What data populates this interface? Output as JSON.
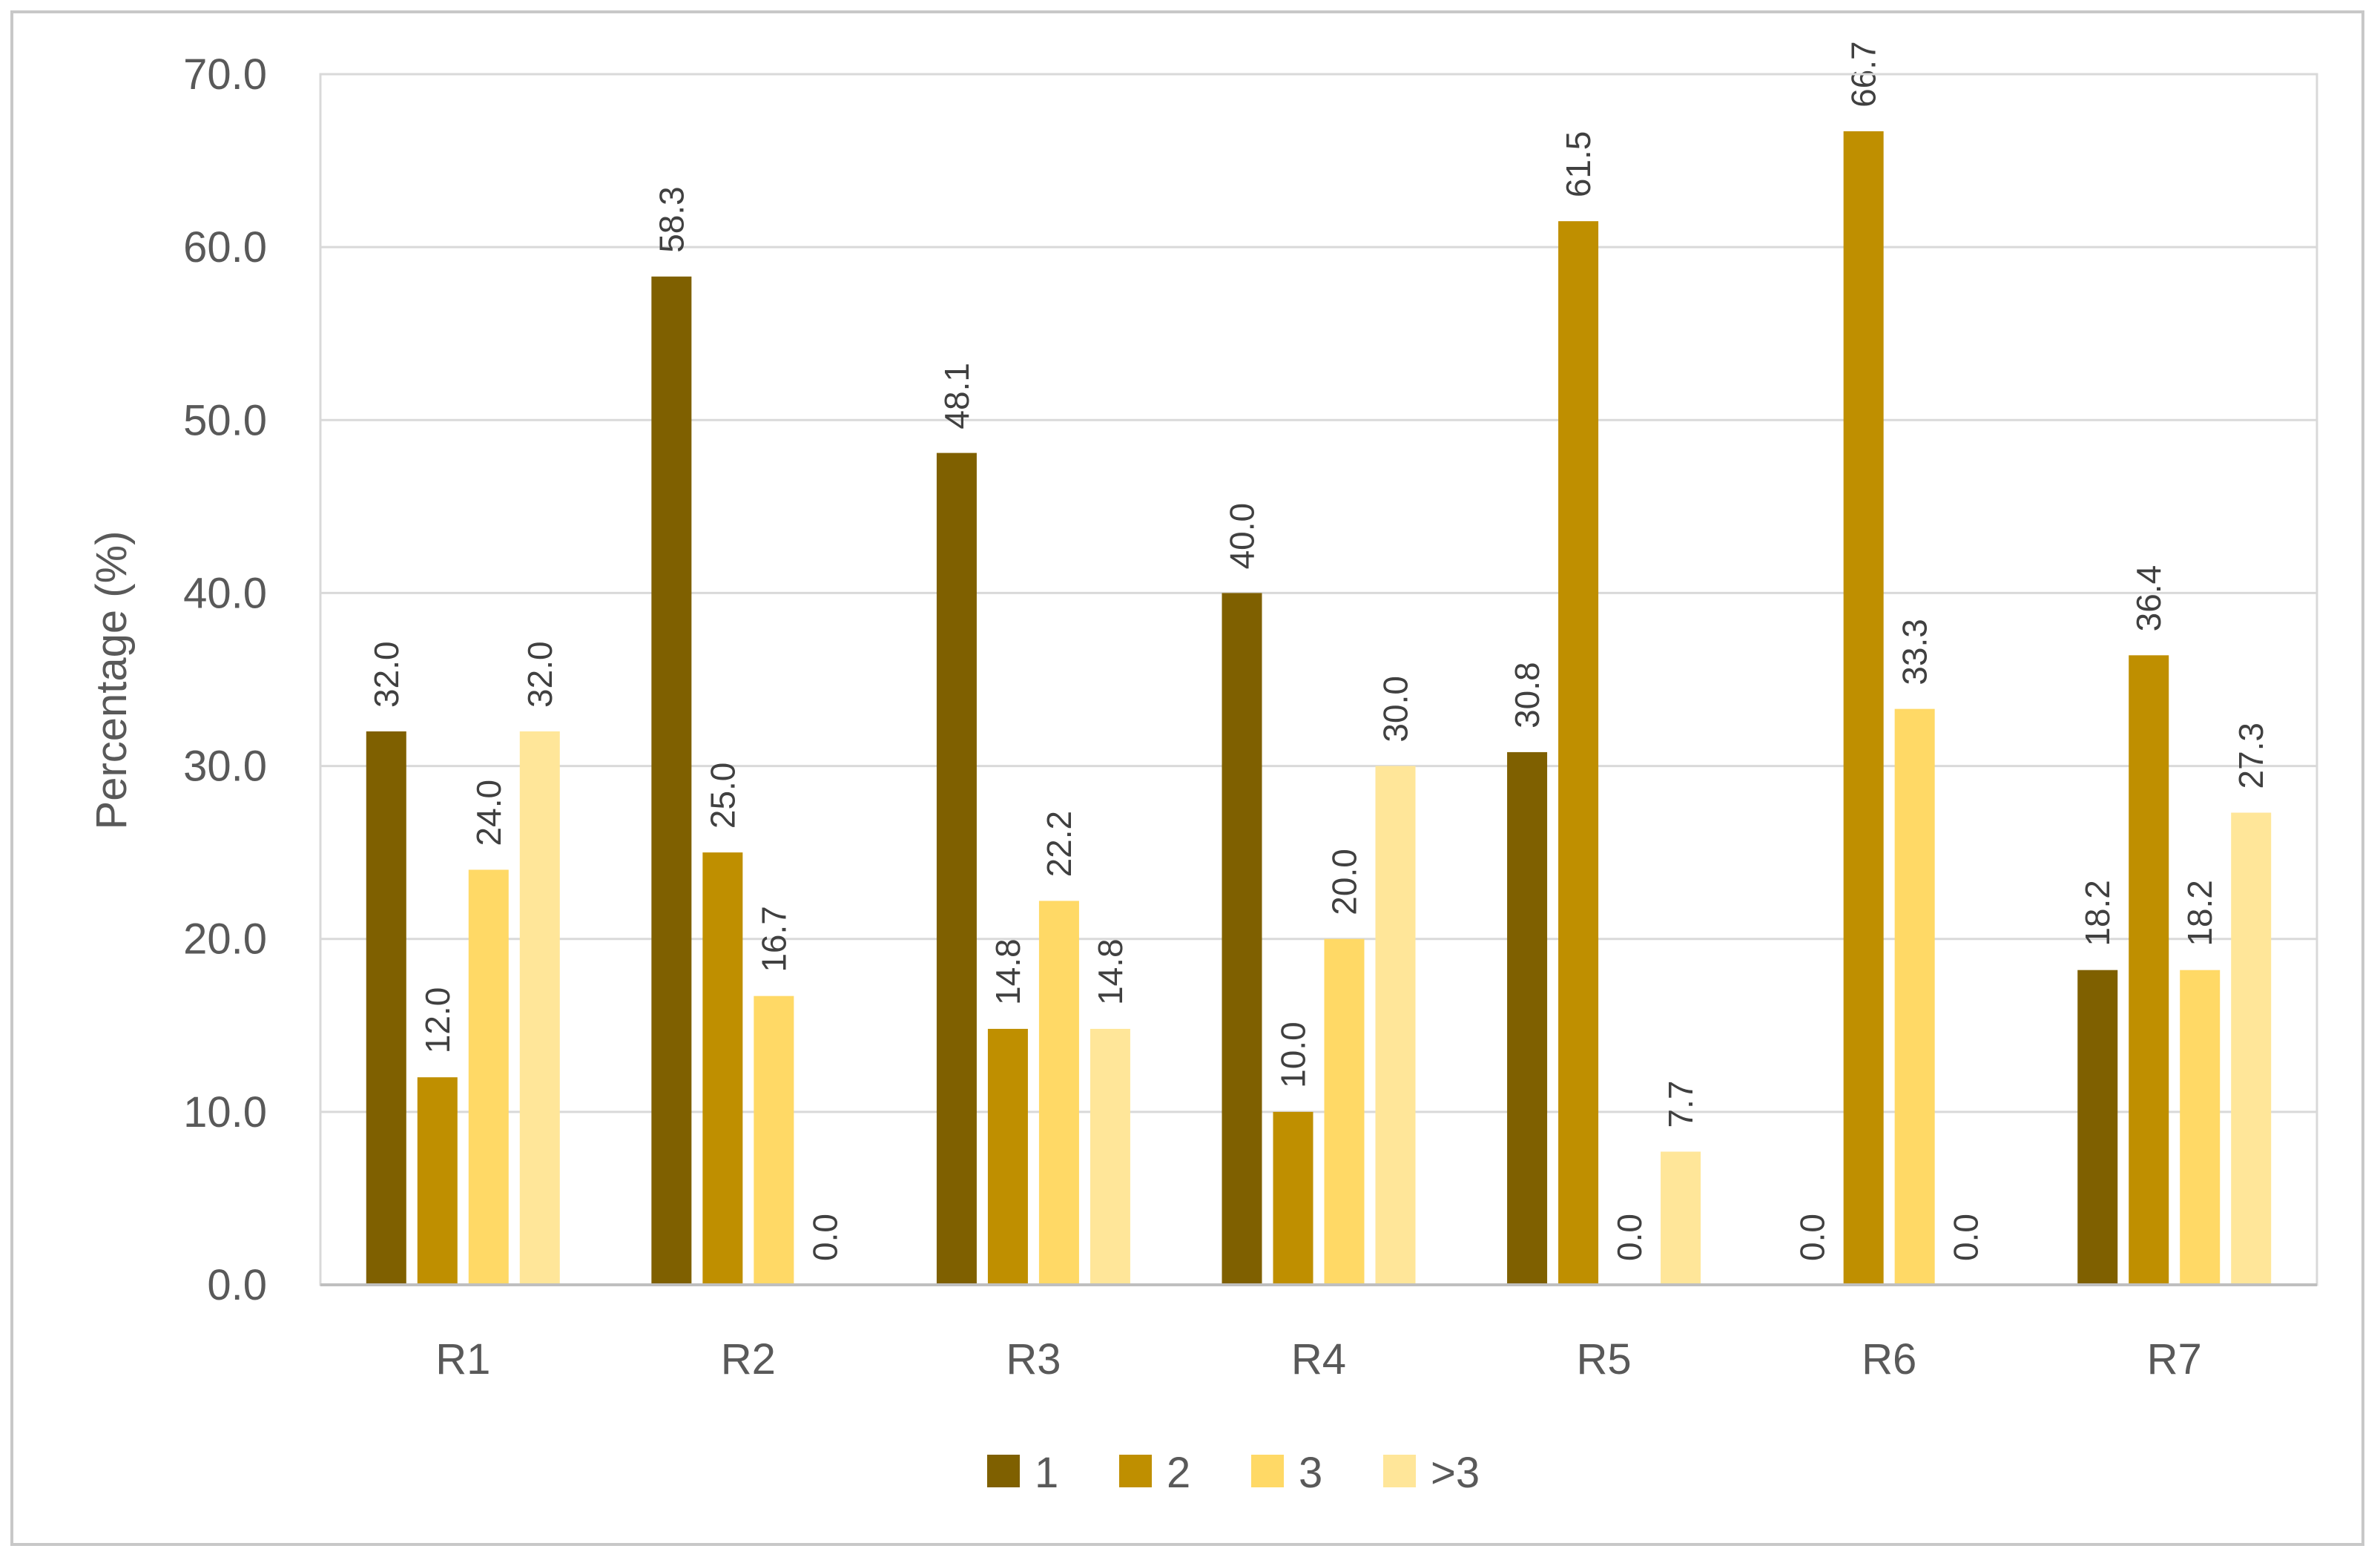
{
  "chart_data": {
    "type": "bar",
    "ylabel": "Percentage (%)",
    "xlabel": "",
    "ylim": [
      0,
      70
    ],
    "yticks": [
      "0.0",
      "10.0",
      "20.0",
      "30.0",
      "40.0",
      "50.0",
      "60.0",
      "70.0"
    ],
    "grid": true,
    "legend_position": "bottom",
    "categories": [
      "R1",
      "R2",
      "R3",
      "R4",
      "R5",
      "R6",
      "R7"
    ],
    "series": [
      {
        "name": "1",
        "color": "#7f6000",
        "values": [
          32.0,
          58.3,
          48.1,
          40.0,
          30.8,
          0.0,
          18.2
        ],
        "labels": [
          "32.0",
          "58.3",
          "48.1",
          "40.0",
          "30.8",
          "0.0",
          "18.2"
        ]
      },
      {
        "name": "2",
        "color": "#bf8f00",
        "values": [
          12.0,
          25.0,
          14.8,
          10.0,
          61.5,
          66.7,
          36.4
        ],
        "labels": [
          "12.0",
          "25.0",
          "14.8",
          "10.0",
          "61.5",
          "66.7",
          "36.4"
        ]
      },
      {
        "name": "3",
        "color": "#ffd966",
        "values": [
          24.0,
          16.7,
          22.2,
          20.0,
          0.0,
          33.3,
          18.2
        ],
        "labels": [
          "24.0",
          "16.7",
          "22.2",
          "20.0",
          "0.0",
          "33.3",
          "18.2"
        ]
      },
      {
        "name": ">3",
        "color": "#ffe699",
        "values": [
          32.0,
          0.0,
          14.8,
          30.0,
          7.7,
          0.0,
          27.3
        ],
        "labels": [
          "32.0",
          "0.0",
          "14.8",
          "30.0",
          "7.7",
          "0.0",
          "27.3"
        ]
      }
    ]
  }
}
